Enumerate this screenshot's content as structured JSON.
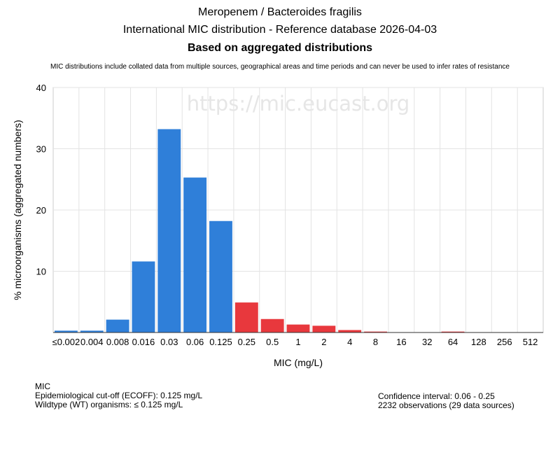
{
  "header": {
    "title_line1": "Meropenem / Bacteroides fragilis",
    "title_line2": "International MIC distribution - Reference database 2026-04-03",
    "title_line3": "Based on aggregated distributions",
    "disclaimer": "MIC distributions include collated data from multiple sources, geographical areas and time periods and can never be used to infer rates of resistance"
  },
  "watermark": "https://mic.eucast.org",
  "chart_data": {
    "type": "bar",
    "xlabel": "MIC (mg/L)",
    "ylabel": "% microorganisms (aggregated numbers)",
    "ylim": [
      0,
      40
    ],
    "yticks": [
      10,
      20,
      30,
      40
    ],
    "grid": true,
    "categories": [
      "≤0.002",
      "0.004",
      "0.008",
      "0.016",
      "0.03",
      "0.06",
      "0.125",
      "0.25",
      "0.5",
      "1",
      "2",
      "4",
      "8",
      "16",
      "32",
      "64",
      "128",
      "256",
      "512"
    ],
    "values": [
      0.3,
      0.3,
      2.1,
      11.6,
      33.2,
      25.3,
      18.2,
      4.9,
      2.2,
      1.3,
      1.1,
      0.4,
      0.15,
      0,
      0,
      0.15,
      0,
      0,
      0
    ],
    "colors": {
      "wildtype": "#2f7fd9",
      "non_wildtype": "#e8383d"
    },
    "wildtype_max_index": 6
  },
  "footer": {
    "mic_heading": "MIC",
    "ecoff": "Epidemiological cut-off (ECOFF): 0.125 mg/L",
    "wildtype": "Wildtype (WT) organisms: ≤ 0.125 mg/L",
    "confidence": "Confidence interval: 0.06 - 0.25",
    "observations": "2232 observations (29 data sources)"
  }
}
